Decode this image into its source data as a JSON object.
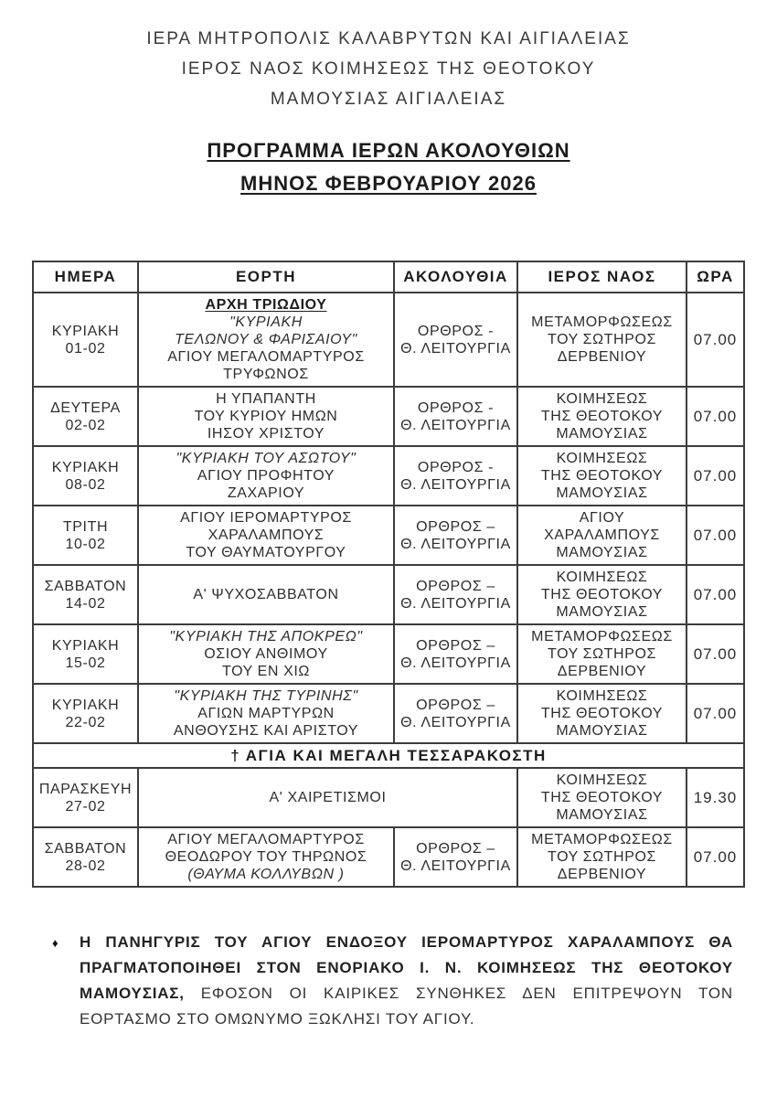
{
  "letterhead": {
    "lines": [
      "ΙΕΡΑ ΜΗΤΡΟΠΟΛΙΣ ΚΑΛΑΒΡΥΤΩΝ ΚΑΙ ΑΙΓΙΑΛΕΙΑΣ",
      "ΙΕΡΟΣ ΝΑΟΣ ΚΟΙΜΗΣΕΩΣ ΤΗΣ ΘΕΟΤΟΚΟΥ",
      "ΜΑΜΟΥΣΙΑΣ ΑΙΓΙΑΛΕΙΑΣ"
    ]
  },
  "title": {
    "lines": [
      "ΠΡΟΓΡΑΜΜΑ ΙΕΡΩΝ ΑΚΟΛΟΥΘΙΩΝ",
      "ΜΗΝΟΣ ΦΕΒΡΟΥΑΡΙΟΥ 2026"
    ]
  },
  "table": {
    "columns": [
      "ΗΜΕΡΑ",
      "ΕΟΡΤΗ",
      "ΑΚΟΛΟΥΘΙΑ",
      "ΙΕΡΟΣ ΝΑΟΣ",
      "ΩΡΑ"
    ],
    "rows": [
      {
        "type": "service",
        "day_lines": [
          "ΚΥΡΙΑΚΗ",
          "01-02"
        ],
        "feast_lines": [
          {
            "text": "ΑΡΧΗ ΤΡΙΩΔΙΟΥ",
            "style": "feast-title"
          },
          {
            "text": "\"ΚΥΡΙΑΚΗ",
            "style": "italic"
          },
          {
            "text": "ΤΕΛΩΝΟΥ & ΦΑΡΙΣΑΙΟΥ\"",
            "style": "italic"
          },
          {
            "text": "ΑΓΙΟΥ ΜΕΓΑΛΟΜΑΡΤΥΡΟΣ",
            "style": ""
          },
          {
            "text": "ΤΡΥΦΩΝΟΣ",
            "style": ""
          }
        ],
        "service_lines": [
          "ΟΡΘΡΟΣ -",
          "Θ. ΛΕΙΤΟΥΡΓΙΑ"
        ],
        "church_lines": [
          "ΜΕΤΑΜΟΡΦΩΣΕΩΣ",
          "ΤΟΥ ΣΩΤΗΡΟΣ",
          "ΔΕΡΒΕΝΙΟΥ"
        ],
        "time": "07.00"
      },
      {
        "type": "service",
        "day_lines": [
          "ΔΕΥΤΕΡΑ",
          "02-02"
        ],
        "feast_lines": [
          {
            "text": "Η ΥΠΑΠΑΝΤΗ",
            "style": ""
          },
          {
            "text": "ΤΟΥ ΚΥΡΙΟΥ ΗΜΩΝ",
            "style": ""
          },
          {
            "text": "ΙΗΣΟΥ ΧΡΙΣΤΟΥ",
            "style": ""
          }
        ],
        "service_lines": [
          "ΟΡΘΡΟΣ -",
          "Θ. ΛΕΙΤΟΥΡΓΙΑ"
        ],
        "church_lines": [
          "ΚΟΙΜΗΣΕΩΣ",
          "ΤΗΣ ΘΕΟΤΟΚΟΥ",
          "ΜΑΜΟΥΣΙΑΣ"
        ],
        "time": "07.00"
      },
      {
        "type": "service",
        "day_lines": [
          "ΚΥΡΙΑΚΗ",
          "08-02"
        ],
        "feast_lines": [
          {
            "text": "\"ΚΥΡΙΑΚΗ ΤΟΥ ΑΣΩΤΟΥ\"",
            "style": "italic"
          },
          {
            "text": "ΑΓΙΟΥ ΠΡΟΦΗΤΟΥ",
            "style": ""
          },
          {
            "text": "ΖΑΧΑΡΙΟΥ",
            "style": ""
          }
        ],
        "service_lines": [
          "ΟΡΘΡΟΣ -",
          "Θ. ΛΕΙΤΟΥΡΓΙΑ"
        ],
        "church_lines": [
          "ΚΟΙΜΗΣΕΩΣ",
          "ΤΗΣ ΘΕΟΤΟΚΟΥ",
          "ΜΑΜΟΥΣΙΑΣ"
        ],
        "time": "07.00"
      },
      {
        "type": "service",
        "day_lines": [
          "ΤΡΙΤΗ",
          "10-02"
        ],
        "feast_lines": [
          {
            "text": "ΑΓΙΟΥ ΙΕΡΟΜΑΡΤΥΡΟΣ",
            "style": ""
          },
          {
            "text": "ΧΑΡΑΛΑΜΠΟΥΣ",
            "style": ""
          },
          {
            "text": "ΤΟΥ ΘΑΥΜΑΤΟΥΡΓΟΥ",
            "style": ""
          }
        ],
        "service_lines": [
          "ΟΡΘΡΟΣ –",
          "Θ. ΛΕΙΤΟΥΡΓΙΑ"
        ],
        "church_lines": [
          "ΑΓΙΟΥ",
          "ΧΑΡΑΛΑΜΠΟΥΣ",
          "ΜΑΜΟΥΣΙΑΣ"
        ],
        "time": "07.00"
      },
      {
        "type": "service",
        "day_lines": [
          "ΣΑΒΒΑΤΟΝ",
          "14-02"
        ],
        "feast_lines": [
          {
            "text": "Α' ΨΥΧΟΣΑΒΒΑΤΟΝ",
            "style": ""
          }
        ],
        "service_lines": [
          "ΟΡΘΡΟΣ –",
          "Θ. ΛΕΙΤΟΥΡΓΙΑ"
        ],
        "church_lines": [
          "ΚΟΙΜΗΣΕΩΣ",
          "ΤΗΣ ΘΕΟΤΟΚΟΥ",
          "ΜΑΜΟΥΣΙΑΣ"
        ],
        "time": "07.00"
      },
      {
        "type": "service",
        "day_lines": [
          "ΚΥΡΙΑΚΗ",
          "15-02"
        ],
        "feast_lines": [
          {
            "text": "\"ΚΥΡΙΑΚΗ ΤΗΣ ΑΠΟΚΡΕΩ\"",
            "style": "italic"
          },
          {
            "text": "ΟΣΙΟΥ ΑΝΘΙΜΟΥ",
            "style": ""
          },
          {
            "text": "ΤΟΥ ΕΝ ΧΙΩ",
            "style": ""
          }
        ],
        "service_lines": [
          "ΟΡΘΡΟΣ –",
          "Θ. ΛΕΙΤΟΥΡΓΙΑ"
        ],
        "church_lines": [
          "ΜΕΤΑΜΟΡΦΩΣΕΩΣ",
          "ΤΟΥ ΣΩΤΗΡΟΣ",
          "ΔΕΡΒΕΝΙΟΥ"
        ],
        "time": "07.00"
      },
      {
        "type": "service",
        "day_lines": [
          "ΚΥΡΙΑΚΗ",
          "22-02"
        ],
        "feast_lines": [
          {
            "text": "\"ΚΥΡΙΑΚΗ ΤΗΣ ΤΥΡΙΝΗΣ\"",
            "style": "italic"
          },
          {
            "text": "ΑΓΙΩΝ ΜΑΡΤΥΡΩΝ",
            "style": ""
          },
          {
            "text": "ΑΝΘΟΥΣΗΣ ΚΑΙ ΑΡΙΣΤΟΥ",
            "style": ""
          }
        ],
        "service_lines": [
          "ΟΡΘΡΟΣ –",
          "Θ. ΛΕΙΤΟΥΡΓΙΑ"
        ],
        "church_lines": [
          "ΚΟΙΜΗΣΕΩΣ",
          "ΤΗΣ ΘΕΟΤΟΚΟΥ",
          "ΜΑΜΟΥΣΙΑΣ"
        ],
        "time": "07.00"
      },
      {
        "type": "banner",
        "text": "† ΑΓΙΑ ΚΑΙ ΜΕΓΑΛΗ ΤΕΣΣΑΡΑΚΟΣΤΗ"
      },
      {
        "type": "service",
        "feast_spans_service": true,
        "day_lines": [
          "ΠΑΡΑΣΚΕΥΗ",
          "27-02"
        ],
        "feast_lines": [
          {
            "text": "Α' ΧΑΙΡΕΤΙΣΜΟΙ",
            "style": ""
          }
        ],
        "service_lines": [],
        "church_lines": [
          "ΚΟΙΜΗΣΕΩΣ",
          "ΤΗΣ ΘΕΟΤΟΚΟΥ",
          "ΜΑΜΟΥΣΙΑΣ"
        ],
        "time": "19.30"
      },
      {
        "type": "service",
        "day_lines": [
          "ΣΑΒΒΑΤΟΝ",
          "28-02"
        ],
        "feast_lines": [
          {
            "text": "ΑΓΙΟΥ ΜΕΓΑΛΟΜΑΡΤΥΡΟΣ",
            "style": ""
          },
          {
            "text": "ΘΕΟΔΩΡΟΥ ΤΟΥ ΤΗΡΩΝΟΣ",
            "style": ""
          },
          {
            "text": "(ΘΑΥΜΑ ΚΟΛΛΥΒΩΝ )",
            "style": "italic"
          }
        ],
        "service_lines": [
          "ΟΡΘΡΟΣ –",
          "Θ. ΛΕΙΤΟΥΡΓΙΑ"
        ],
        "church_lines": [
          "ΜΕΤΑΜΟΡΦΩΣΕΩΣ",
          "ΤΟΥ ΣΩΤΗΡΟΣ",
          "ΔΕΡΒΕΝΙΟΥ"
        ],
        "time": "07.00"
      }
    ]
  },
  "note": {
    "bullet": "♦",
    "bold_text": "Η ΠΑΝΗΓΥΡΙΣ ΤΟΥ ΑΓΙΟΥ ΕΝΔΟΞΟΥ ΙΕΡΟΜΑΡΤΥΡΟΣ ΧΑΡΑΛΑΜΠΟΥΣ ΘΑ ΠΡΑΓΜΑΤΟΠΟΙΗΘΕΙ ΣΤΟΝ ΕΝΟΡΙΑΚΟ Ι. Ν. ΚΟΙΜΗΣΕΩΣ ΤΗΣ ΘΕΟΤΟΚΟΥ ΜΑΜΟΥΣΙΑΣ,",
    "regular_text": "ΕΦΟΣΟΝ ΟΙ ΚΑΙΡΙΚΕΣ ΣΥΝΘΗΚΕΣ ΔΕΝ ΕΠΙΤΡΕΨΟΥΝ ΤΟΝ ΕΟΡΤΑΣΜΟ ΣΤΟ ΟΜΩΝΥΜΟ ΞΩΚΛΗΣΙ ΤΟΥ ΑΓΙΟΥ."
  }
}
